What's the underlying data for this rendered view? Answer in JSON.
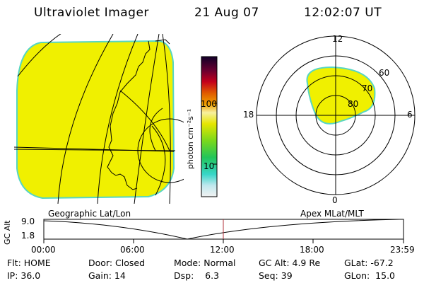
{
  "header": {
    "instrument": "Ultraviolet Imager",
    "date": "21 Aug 07",
    "time": "12:02:07 UT"
  },
  "colorbar": {
    "unit_label": "photon cm⁻²s⁻¹",
    "ticks": [
      "100",
      "10"
    ],
    "scale": "log"
  },
  "polar_plot": {
    "mlt_labels": [
      "12",
      "18",
      "6",
      "0"
    ],
    "lat_labels": [
      "60",
      "70",
      "80"
    ]
  },
  "timeline": {
    "left_title": "Geographic Lat/Lon",
    "right_title": "Apex MLat/MLT",
    "ylabel": "GC Alt",
    "ytop": "9.0",
    "ybottom": "1.8",
    "time_ticks": [
      "00:00",
      "06:00",
      "12:00",
      "18:00",
      "23:59"
    ]
  },
  "footer": {
    "row1": [
      "Flt: HOME",
      "Door: Closed",
      "Mode: Normal",
      "GC Alt: 4.9 Re",
      "GLat: -67.2"
    ],
    "row2": [
      "IP: 36.0",
      "Gain: 14",
      "Dsp:    6.3",
      "Seq: 39",
      "GLon:  15.0"
    ]
  },
  "colors": {
    "image_fill": "#f0f000",
    "image_edge": "#56d6c3",
    "current_time_marker": "#b0303a"
  }
}
